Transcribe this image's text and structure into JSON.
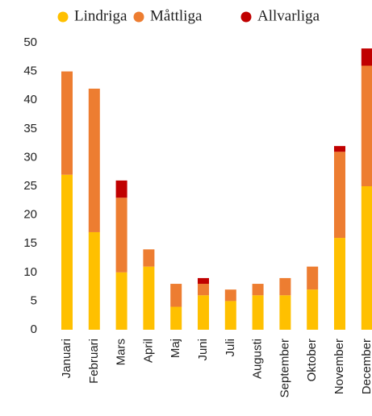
{
  "chart_data": {
    "type": "stacked_bar",
    "categories": [
      "Januari",
      "Februari",
      "Mars",
      "April",
      "Maj",
      "Juni",
      "Juli",
      "Augusti",
      "September",
      "Oktober",
      "November",
      "December"
    ],
    "series": [
      {
        "name": "Lindriga",
        "color": "#ffc000",
        "values": [
          27,
          17,
          10,
          11,
          4,
          6,
          5,
          6,
          6,
          7,
          16,
          25
        ]
      },
      {
        "name": "Måttliga",
        "color": "#ed7d31",
        "values": [
          18,
          25,
          13,
          3,
          4,
          2,
          2,
          2,
          3,
          4,
          15,
          21
        ]
      },
      {
        "name": "Allvarliga",
        "color": "#c00000",
        "values": [
          0,
          0,
          3,
          0,
          0,
          1,
          0,
          0,
          0,
          0,
          1,
          3
        ]
      }
    ],
    "ylim": [
      0,
      50
    ],
    "yticks": [
      0,
      5,
      10,
      15,
      20,
      25,
      30,
      35,
      40,
      45,
      50
    ],
    "grid": false,
    "legend": "top"
  }
}
